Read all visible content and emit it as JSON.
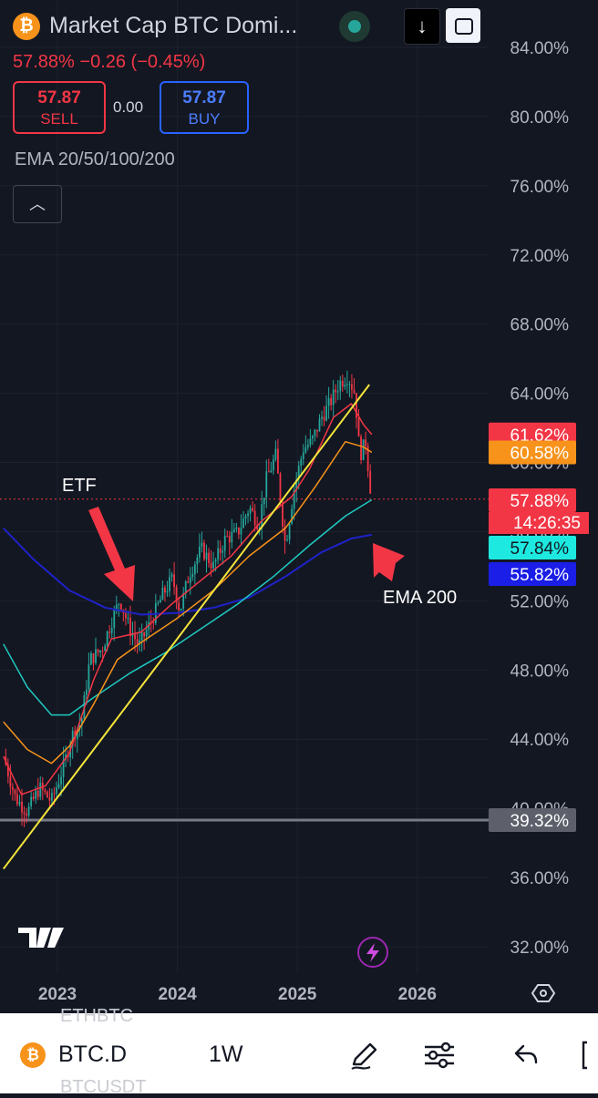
{
  "header": {
    "symbol_icon": "bitcoin-icon",
    "symbol_glyph": "₿",
    "title": "Market Cap BTC Domi...",
    "price_line": "57.88% −0.26 (−0.45%)",
    "download_icon_glyph": "↓"
  },
  "trade": {
    "sell_value": "57.87",
    "sell_label": "SELL",
    "spread": "0.00",
    "buy_value": "57.87",
    "buy_label": "BUY"
  },
  "indicator_label": "EMA 20/50/100/200",
  "collapse_glyph": "︿",
  "annotations": {
    "etf": "ETF",
    "ema200": "EMA 200"
  },
  "colors": {
    "background": "#131722",
    "up": "#26a69a",
    "down": "#f23645",
    "ema20": "#f23645",
    "ema50": "#f7931a",
    "ema100": "#1fc9c0",
    "ema200": "#1e22c8",
    "trendline": "#f5e53a",
    "arrow": "#f23645"
  },
  "chart_data": {
    "type": "candlestick",
    "title": "Market Cap BTC Dominance",
    "x_ticks": [
      "2023",
      "2024",
      "2025",
      "2026"
    ],
    "y_ticks": [
      "84.00%",
      "80.00%",
      "76.00%",
      "72.00%",
      "68.00%",
      "64.00%",
      "60.00%",
      "56.00%",
      "52.00%",
      "48.00%",
      "44.00%",
      "40.00%",
      "36.00%",
      "32.00%"
    ],
    "y_range": [
      32,
      84
    ],
    "x_range": [
      2022.55,
      2026.0
    ],
    "last_price": 57.88,
    "countdown": "14:26:35",
    "price_tags": [
      {
        "label": "61.62%",
        "value": 61.62,
        "color": "#f23645"
      },
      {
        "label": "60.58%",
        "value": 60.58,
        "color": "#f7931a"
      },
      {
        "label": "57.88%",
        "value": 57.88,
        "color": "#f23645"
      },
      {
        "label": "57.84%",
        "value": 57.84,
        "color": "#1de9e0"
      },
      {
        "label": "55.82%",
        "value": 55.82,
        "color": "#1a1ee6"
      },
      {
        "label": "39.32%",
        "value": 39.32,
        "color": "#5d606b"
      }
    ],
    "horizontal_line": 39.32,
    "trendline": {
      "from": [
        2022.55,
        36.5
      ],
      "to": [
        2025.6,
        64.5
      ]
    },
    "ema200_points": [
      [
        2022.55,
        56.2
      ],
      [
        2022.8,
        54.4
      ],
      [
        2023.1,
        52.6
      ],
      [
        2023.4,
        51.6
      ],
      [
        2023.7,
        51.2
      ],
      [
        2024.0,
        51.3
      ],
      [
        2024.3,
        51.6
      ],
      [
        2024.6,
        52.2
      ],
      [
        2024.9,
        53.4
      ],
      [
        2025.2,
        54.8
      ],
      [
        2025.45,
        55.6
      ],
      [
        2025.62,
        55.82
      ]
    ],
    "ema100_points": [
      [
        2022.55,
        49.5
      ],
      [
        2022.75,
        47.0
      ],
      [
        2022.95,
        45.4
      ],
      [
        2023.1,
        45.4
      ],
      [
        2023.3,
        46.4
      ],
      [
        2023.6,
        47.8
      ],
      [
        2023.9,
        49.0
      ],
      [
        2024.2,
        50.4
      ],
      [
        2024.5,
        51.8
      ],
      [
        2024.8,
        53.4
      ],
      [
        2025.1,
        55.2
      ],
      [
        2025.4,
        56.9
      ],
      [
        2025.62,
        57.84
      ]
    ],
    "ema50_points": [
      [
        2022.55,
        45.0
      ],
      [
        2022.75,
        43.4
      ],
      [
        2022.95,
        42.6
      ],
      [
        2023.1,
        43.6
      ],
      [
        2023.3,
        46.0
      ],
      [
        2023.5,
        48.6
      ],
      [
        2023.7,
        49.6
      ],
      [
        2024.0,
        51.0
      ],
      [
        2024.3,
        52.6
      ],
      [
        2024.6,
        54.6
      ],
      [
        2024.9,
        56.2
      ],
      [
        2025.15,
        58.6
      ],
      [
        2025.4,
        61.2
      ],
      [
        2025.55,
        60.9
      ],
      [
        2025.62,
        60.58
      ]
    ],
    "ema20_points": [
      [
        2022.55,
        43.0
      ],
      [
        2022.7,
        40.8
      ],
      [
        2022.9,
        41.3
      ],
      [
        2023.1,
        43.2
      ],
      [
        2023.3,
        47.4
      ],
      [
        2023.45,
        49.8
      ],
      [
        2023.7,
        50.2
      ],
      [
        2023.95,
        51.8
      ],
      [
        2024.2,
        53.2
      ],
      [
        2024.45,
        54.6
      ],
      [
        2024.7,
        56.6
      ],
      [
        2024.95,
        58.0
      ],
      [
        2025.1,
        59.6
      ],
      [
        2025.3,
        62.6
      ],
      [
        2025.45,
        63.4
      ],
      [
        2025.55,
        62.2
      ],
      [
        2025.62,
        61.62
      ]
    ],
    "close_path": [
      [
        2022.55,
        43.0
      ],
      [
        2022.65,
        40.6
      ],
      [
        2022.75,
        39.8
      ],
      [
        2022.85,
        41.2
      ],
      [
        2022.95,
        40.4
      ],
      [
        2023.05,
        42.4
      ],
      [
        2023.12,
        44.2
      ],
      [
        2023.2,
        45.0
      ],
      [
        2023.27,
        48.6
      ],
      [
        2023.37,
        49.2
      ],
      [
        2023.45,
        50.8
      ],
      [
        2023.52,
        52.1
      ],
      [
        2023.6,
        50.4
      ],
      [
        2023.68,
        49.4
      ],
      [
        2023.78,
        50.8
      ],
      [
        2023.88,
        52.4
      ],
      [
        2023.96,
        53.3
      ],
      [
        2024.02,
        51.4
      ],
      [
        2024.1,
        53.6
      ],
      [
        2024.2,
        55.0
      ],
      [
        2024.3,
        54.0
      ],
      [
        2024.4,
        55.6
      ],
      [
        2024.5,
        55.9
      ],
      [
        2024.6,
        57.4
      ],
      [
        2024.68,
        56.4
      ],
      [
        2024.74,
        59.0
      ],
      [
        2024.82,
        60.4
      ],
      [
        2024.9,
        55.2
      ],
      [
        2024.97,
        58.4
      ],
      [
        2025.05,
        60.8
      ],
      [
        2025.12,
        61.2
      ],
      [
        2025.2,
        62.6
      ],
      [
        2025.27,
        63.4
      ],
      [
        2025.35,
        64.6
      ],
      [
        2025.42,
        65.0
      ],
      [
        2025.48,
        64.0
      ],
      [
        2025.52,
        60.4
      ],
      [
        2025.57,
        61.2
      ],
      [
        2025.6,
        59.0
      ],
      [
        2025.62,
        57.88
      ]
    ]
  },
  "bottom_bar": {
    "ghost_top": "ETHBTC",
    "ghost_bottom": "BTCUSDT",
    "symbol": "BTC.D",
    "interval": "1W",
    "icons": [
      "pen-icon",
      "sliders-icon",
      "undo-icon"
    ]
  }
}
